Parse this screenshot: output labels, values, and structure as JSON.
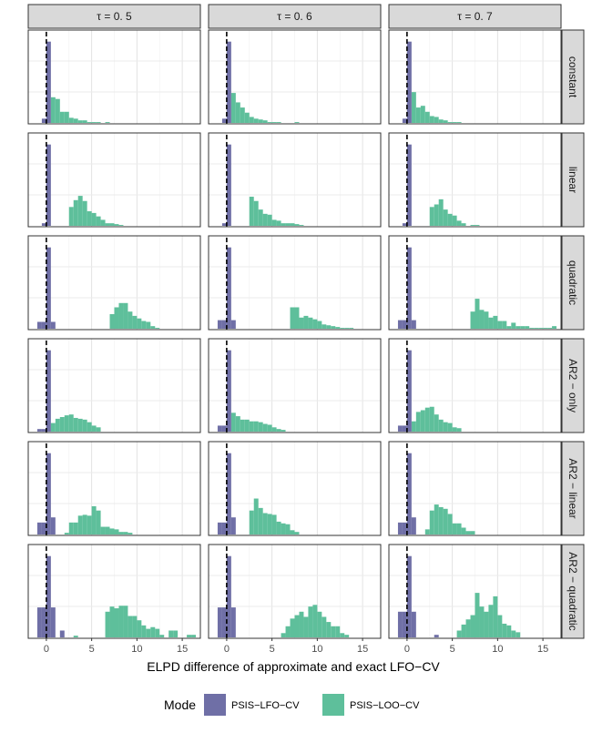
{
  "chart_data": {
    "type": "histogram",
    "facets": {
      "columns": [
        "τ = 0. 5",
        "τ = 0. 6",
        "τ = 0. 7"
      ],
      "rows": [
        "constant",
        "linear",
        "quadratic",
        "AR2 − only",
        "AR2 − linear",
        "AR2 − quadratic"
      ]
    },
    "xlabel": "ELPD difference of approximate and exact LFO−CV",
    "ylabel": "",
    "x_ticks": [
      0,
      5,
      10,
      15
    ],
    "xlim": [
      -2,
      17
    ],
    "reference_line": {
      "x": 0,
      "style": "dashed",
      "color": "#000000"
    },
    "legend": {
      "title": "Mode",
      "position": "bottom",
      "entries": [
        {
          "name": "PSIS−LFO−CV",
          "color": "#6f6fa6"
        },
        {
          "name": "PSIS−LOO−CV",
          "color": "#5ebf9b"
        }
      ]
    },
    "grid": true,
    "lfo_color": "#6f6fa6",
    "loo_color": "#5ebf9b",
    "bin_width": 0.5,
    "y_max": 100,
    "panels": [
      {
        "row": 0,
        "col": 0,
        "lfo": {
          "x": [
            -0.25,
            0.25
          ],
          "y": [
            5,
            95
          ]
        },
        "loo": {
          "x": [
            0.75,
            1.25,
            1.75,
            2.25,
            2.75,
            3.25,
            3.75,
            4.25,
            4.75,
            5.25,
            5.75,
            6.75
          ],
          "y": [
            30,
            28,
            13,
            13,
            6,
            5,
            3,
            3,
            1,
            1,
            1,
            1
          ]
        }
      },
      {
        "row": 0,
        "col": 1,
        "lfo": {
          "x": [
            -0.25,
            0.25
          ],
          "y": [
            5,
            95
          ]
        },
        "loo": {
          "x": [
            0.75,
            1.25,
            1.75,
            2.25,
            2.75,
            3.25,
            3.75,
            4.25,
            4.75,
            5.25,
            5.75,
            7.75
          ],
          "y": [
            35,
            24,
            18,
            12,
            7,
            5,
            4,
            3,
            1,
            1,
            1,
            1
          ]
        }
      },
      {
        "row": 0,
        "col": 2,
        "lfo": {
          "x": [
            -0.25,
            0.25
          ],
          "y": [
            5,
            95
          ]
        },
        "loo": {
          "x": [
            0.75,
            1.25,
            1.75,
            2.25,
            2.75,
            3.25,
            3.75,
            4.25,
            4.75,
            5.25,
            5.75
          ],
          "y": [
            36,
            18,
            20,
            13,
            8,
            7,
            4,
            3,
            1,
            1,
            1
          ]
        }
      },
      {
        "row": 1,
        "col": 0,
        "lfo": {
          "x": [
            -0.25,
            0.25
          ],
          "y": [
            3,
            95
          ]
        },
        "loo": {
          "x": [
            2.75,
            3.25,
            3.75,
            4.25,
            4.75,
            5.25,
            5.75,
            6.25,
            6.75,
            7.25,
            7.75,
            8.25
          ],
          "y": [
            22,
            30,
            35,
            29,
            17,
            15,
            11,
            7,
            3,
            3,
            2,
            1
          ]
        }
      },
      {
        "row": 1,
        "col": 1,
        "lfo": {
          "x": [
            -0.25,
            0.25
          ],
          "y": [
            3,
            95
          ]
        },
        "loo": {
          "x": [
            2.75,
            3.25,
            3.75,
            4.25,
            4.75,
            5.25,
            5.75,
            6.25,
            6.75,
            7.25,
            7.75,
            8.25
          ],
          "y": [
            34,
            29,
            19,
            14,
            13,
            7,
            6,
            3,
            3,
            3,
            2,
            1
          ]
        }
      },
      {
        "row": 1,
        "col": 2,
        "lfo": {
          "x": [
            -0.25,
            0.25
          ],
          "y": [
            3,
            95
          ]
        },
        "loo": {
          "x": [
            2.75,
            3.25,
            3.75,
            4.25,
            4.75,
            5.25,
            5.75,
            6.25,
            7.25,
            7.75
          ],
          "y": [
            22,
            25,
            31,
            19,
            14,
            12,
            6,
            3,
            1,
            1
          ]
        }
      },
      {
        "row": 2,
        "col": 0,
        "lfo": {
          "x": [
            -0.75,
            -0.25,
            0.25,
            0.75
          ],
          "y": [
            8,
            8,
            95,
            8
          ]
        },
        "loo": {
          "x": [
            7.25,
            7.75,
            8.25,
            8.75,
            9.25,
            9.75,
            10.25,
            10.75,
            11.25,
            11.75,
            12.25
          ],
          "y": [
            17,
            25,
            30,
            30,
            20,
            15,
            12,
            9,
            8,
            3,
            1
          ]
        }
      },
      {
        "row": 2,
        "col": 1,
        "lfo": {
          "x": [
            -0.75,
            -0.25,
            0.25,
            0.75
          ],
          "y": [
            10,
            10,
            95,
            10
          ]
        },
        "loo": {
          "x": [
            7.25,
            7.75,
            8.25,
            8.75,
            9.25,
            9.75,
            10.25,
            10.75,
            11.25,
            11.75,
            12.25,
            12.75,
            13.25,
            13.75
          ],
          "y": [
            25,
            25,
            13,
            15,
            13,
            11,
            9,
            5,
            4,
            3,
            2,
            1,
            1,
            1
          ]
        }
      },
      {
        "row": 2,
        "col": 2,
        "lfo": {
          "x": [
            -0.75,
            -0.25,
            0.25,
            0.75
          ],
          "y": [
            10,
            10,
            95,
            10
          ]
        },
        "loo": {
          "x": [
            7.25,
            7.75,
            8.25,
            8.75,
            9.25,
            9.75,
            10.25,
            10.75,
            11.25,
            11.75,
            12.25,
            12.75,
            13.25,
            13.75,
            14.25,
            14.75,
            15.25,
            15.75,
            16.25
          ],
          "y": [
            20,
            35,
            22,
            20,
            13,
            15,
            9,
            9,
            3,
            7,
            3,
            3,
            3,
            1,
            1,
            1,
            1,
            1,
            3
          ]
        }
      },
      {
        "row": 3,
        "col": 0,
        "lfo": {
          "x": [
            -0.75,
            -0.25,
            0.25
          ],
          "y": [
            3,
            3,
            95
          ]
        },
        "loo": {
          "x": [
            0.75,
            1.25,
            1.75,
            2.25,
            2.75,
            3.25,
            3.75,
            4.25,
            4.75,
            5.25,
            5.75
          ],
          "y": [
            10,
            15,
            17,
            19,
            20,
            16,
            15,
            14,
            11,
            7,
            5
          ]
        }
      },
      {
        "row": 3,
        "col": 1,
        "lfo": {
          "x": [
            -0.75,
            -0.25,
            0.25
          ],
          "y": [
            7,
            7,
            95
          ]
        },
        "loo": {
          "x": [
            0.75,
            1.25,
            1.75,
            2.25,
            2.75,
            3.25,
            3.75,
            4.25,
            4.75,
            5.25,
            5.75,
            6.25
          ],
          "y": [
            22,
            18,
            14,
            14,
            12,
            12,
            11,
            9,
            8,
            5,
            3,
            2
          ]
        }
      },
      {
        "row": 3,
        "col": 2,
        "lfo": {
          "x": [
            -0.75,
            -0.25,
            0.25
          ],
          "y": [
            7,
            7,
            95
          ]
        },
        "loo": {
          "x": [
            0.75,
            1.25,
            1.75,
            2.25,
            2.75,
            3.25,
            3.75,
            4.25,
            4.75,
            5.25,
            5.75
          ],
          "y": [
            12,
            23,
            25,
            28,
            29,
            20,
            14,
            11,
            10,
            5,
            4
          ]
        }
      },
      {
        "row": 4,
        "col": 0,
        "lfo": {
          "x": [
            -0.75,
            -0.25,
            0.25,
            0.75
          ],
          "y": [
            14,
            14,
            95,
            20
          ]
        },
        "loo": {
          "x": [
            2.25,
            2.75,
            3.25,
            3.75,
            4.25,
            4.75,
            5.25,
            5.75,
            6.25,
            6.75,
            7.25,
            7.75,
            8.25,
            8.75,
            9.25
          ],
          "y": [
            2,
            14,
            14,
            22,
            23,
            22,
            33,
            28,
            9,
            9,
            7,
            6,
            3,
            3,
            2
          ]
        }
      },
      {
        "row": 4,
        "col": 1,
        "lfo": {
          "x": [
            -0.75,
            -0.25,
            0.25,
            0.75
          ],
          "y": [
            14,
            14,
            95,
            20
          ]
        },
        "loo": {
          "x": [
            2.75,
            3.25,
            3.75,
            4.25,
            4.75,
            5.25,
            5.75,
            6.25,
            6.75,
            7.25,
            7.75
          ],
          "y": [
            28,
            42,
            31,
            25,
            24,
            23,
            15,
            13,
            12,
            5,
            3
          ]
        }
      },
      {
        "row": 4,
        "col": 2,
        "lfo": {
          "x": [
            -0.75,
            -0.25,
            0.25,
            0.75
          ],
          "y": [
            14,
            14,
            95,
            20
          ]
        },
        "loo": {
          "x": [
            2.25,
            2.75,
            3.25,
            3.75,
            4.25,
            4.75,
            5.25,
            5.75,
            6.25,
            6.75,
            7.25
          ],
          "y": [
            6,
            28,
            35,
            32,
            30,
            24,
            13,
            13,
            8,
            4,
            4
          ]
        }
      },
      {
        "row": 5,
        "col": 0,
        "lfo": {
          "x": [
            -0.75,
            -0.25,
            0.25,
            0.75,
            1.75
          ],
          "y": [
            35,
            35,
            95,
            35,
            8
          ]
        },
        "loo": {
          "x": [
            3.25,
            6.75,
            7.25,
            7.75,
            8.25,
            8.75,
            9.25,
            9.75,
            10.25,
            10.75,
            11.25,
            11.75,
            12.25,
            12.75,
            13.75,
            14.25,
            15.75,
            16.25
          ],
          "y": [
            2,
            30,
            36,
            34,
            37,
            37,
            25,
            25,
            20,
            14,
            10,
            12,
            10,
            3,
            8,
            8,
            3,
            3
          ]
        }
      },
      {
        "row": 5,
        "col": 1,
        "lfo": {
          "x": [
            -0.75,
            -0.25,
            0.25,
            0.75
          ],
          "y": [
            35,
            35,
            95,
            35
          ]
        },
        "loo": {
          "x": [
            6.25,
            6.75,
            7.25,
            7.75,
            8.25,
            8.75,
            9.25,
            9.75,
            10.25,
            10.75,
            11.25,
            11.75,
            12.25,
            12.75,
            13.25
          ],
          "y": [
            5,
            13,
            22,
            26,
            30,
            24,
            36,
            38,
            30,
            24,
            18,
            13,
            13,
            5,
            3
          ]
        }
      },
      {
        "row": 5,
        "col": 2,
        "lfo": {
          "x": [
            -0.75,
            -0.25,
            0.25,
            0.75,
            3.25
          ],
          "y": [
            30,
            30,
            95,
            30,
            3
          ]
        },
        "loo": {
          "x": [
            5.75,
            6.25,
            6.75,
            7.25,
            7.75,
            8.25,
            8.75,
            9.25,
            9.75,
            10.25,
            10.75,
            11.25,
            11.75,
            12.25
          ],
          "y": [
            8,
            15,
            21,
            26,
            52,
            36,
            30,
            38,
            48,
            26,
            16,
            14,
            8,
            6
          ]
        }
      }
    ]
  }
}
